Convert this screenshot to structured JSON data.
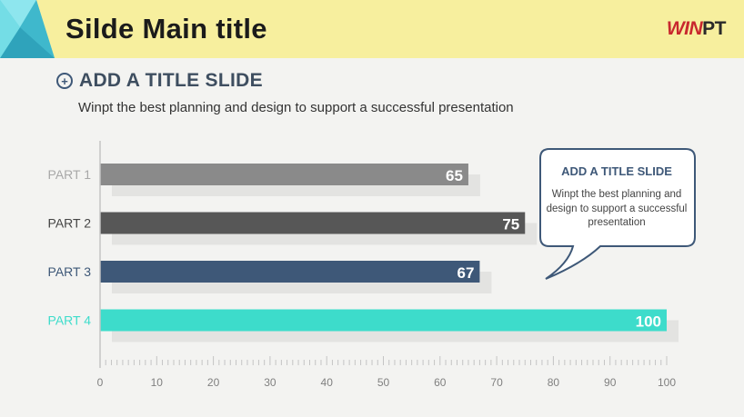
{
  "header": {
    "title": "Silde Main title",
    "logo_prefix": "WIN",
    "logo_suffix": "PT"
  },
  "section": {
    "title": "ADD A TITLE SLIDE",
    "description": "Winpt the best planning and design to support a successful presentation"
  },
  "callout": {
    "title": "ADD A TITLE SLIDE",
    "text": "Winpt the best planning and design to support a successful presentation"
  },
  "colors": {
    "header_bg": "#f7ef9e",
    "accent": "#3e5878",
    "logo_red": "#c8282e",
    "teal": "#3ddccb"
  },
  "chart_data": {
    "type": "bar",
    "orientation": "horizontal",
    "categories": [
      "PART 1",
      "PART 2",
      "PART 3",
      "PART 4"
    ],
    "values": [
      65,
      75,
      67,
      100
    ],
    "bar_colors": [
      "#8a8a8a",
      "#575757",
      "#3e5878",
      "#3ddccb"
    ],
    "label_colors": [
      "#a8a8a8",
      "#444444",
      "#3e5878",
      "#3ddccb"
    ],
    "xlim": [
      0,
      100
    ],
    "xticks": [
      0,
      10,
      20,
      30,
      40,
      50,
      60,
      70,
      80,
      90,
      100
    ],
    "grid": false,
    "title": "",
    "xlabel": "",
    "ylabel": ""
  }
}
